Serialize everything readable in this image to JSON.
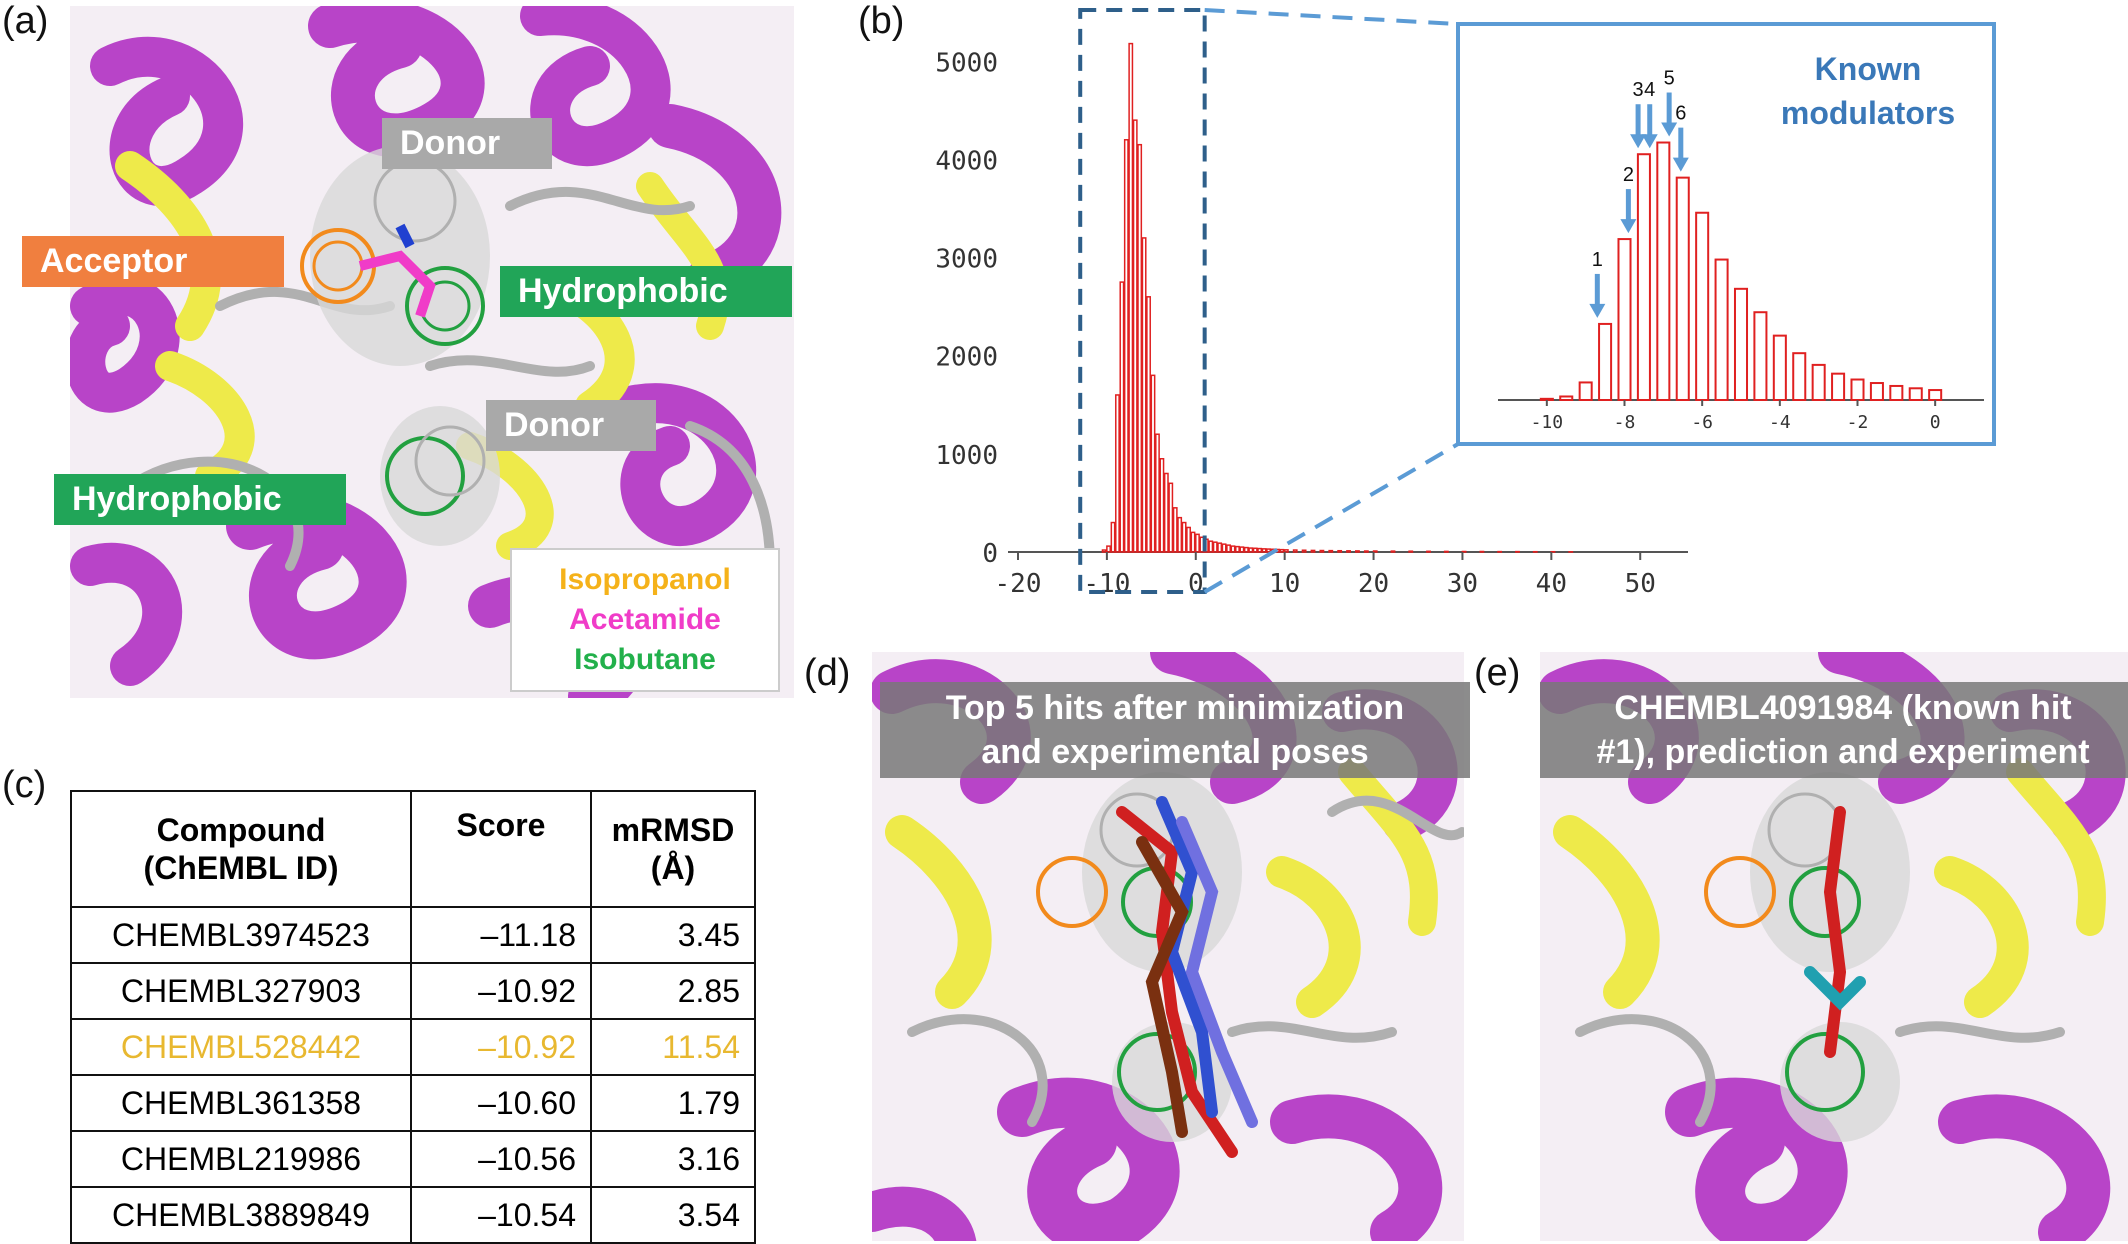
{
  "panels": {
    "a": {
      "letter": "(a)",
      "labels": {
        "acceptor": "Acceptor",
        "hydrophobic_1": "Hydrophobic",
        "hydrophobic_2": "Hydrophobic",
        "donor_1": "Donor",
        "donor_2": "Donor"
      },
      "legend": [
        {
          "text": "Isopropanol",
          "color": "#f5b21a"
        },
        {
          "text": "Acetamide",
          "color": "#f03cc8"
        },
        {
          "text": "Isobutane",
          "color": "#22b04b"
        }
      ]
    },
    "b": {
      "letter": "(b)",
      "inset_title_1": "Known",
      "inset_title_2": "modulators",
      "arrow_labels": [
        "1",
        "2 3 4",
        "5 6"
      ]
    },
    "c": {
      "letter": "(c)",
      "headers": [
        "Compound\n(ChEMBL ID)",
        "Score",
        "mRMSD\n(Å)"
      ],
      "header_lines": [
        [
          "Compound",
          "(ChEMBL ID)"
        ],
        [
          "Score"
        ],
        [
          "mRMSD",
          "(Å)"
        ]
      ],
      "rows": [
        {
          "id": "CHEMBL3974523",
          "score": "–11.18",
          "mrmsd": "3.45",
          "highlight": false
        },
        {
          "id": "CHEMBL327903",
          "score": "–10.92",
          "mrmsd": "2.85",
          "highlight": false
        },
        {
          "id": "CHEMBL528442",
          "score": "–10.92",
          "mrmsd": "11.54",
          "highlight": true
        },
        {
          "id": "CHEMBL361358",
          "score": "–10.60",
          "mrmsd": "1.79",
          "highlight": false
        },
        {
          "id": "CHEMBL219986",
          "score": "–10.56",
          "mrmsd": "3.16",
          "highlight": false
        },
        {
          "id": "CHEMBL3889849",
          "score": "–10.54",
          "mrmsd": "3.54",
          "highlight": false
        }
      ]
    },
    "d": {
      "letter": "(d)",
      "caption_1": "Top 5 hits after minimization",
      "caption_2": "and experimental poses"
    },
    "e": {
      "letter": "(e)",
      "caption_1": "CHEMBL4091984 (known hit",
      "caption_2": "#1), prediction and experiment"
    }
  },
  "chart_data": [
    {
      "type": "bar",
      "name": "main histogram",
      "x_ticks": [
        -20,
        -10,
        0,
        10,
        20,
        30,
        40,
        50
      ],
      "y_ticks": [
        0,
        1000,
        2000,
        3000,
        4000,
        5000
      ],
      "xlim": [
        -20,
        52
      ],
      "ylim": [
        0,
        5400
      ],
      "bin_width": 0.5,
      "bins_x": [
        -10.5,
        -10,
        -9.5,
        -9,
        -8.5,
        -8,
        -7.5,
        -7,
        -6.5,
        -6,
        -5.5,
        -5,
        -4.5,
        -4,
        -3.5,
        -3,
        -2.5,
        -2,
        -1.5,
        -1,
        -0.5,
        0,
        0.5,
        1,
        1.5,
        2,
        2.5,
        3,
        3.5,
        4,
        4.5,
        5,
        5.5,
        6,
        6.5,
        7,
        7.5,
        8,
        8.5,
        9,
        9.5,
        10,
        11,
        12,
        13,
        14,
        15,
        16,
        17,
        18,
        19,
        20,
        22,
        24,
        26,
        28,
        30,
        32,
        34,
        36,
        38,
        40,
        42
      ],
      "bins_y": [
        20,
        60,
        300,
        1600,
        2750,
        4200,
        5180,
        4400,
        4150,
        3200,
        2600,
        1800,
        1200,
        950,
        800,
        700,
        450,
        350,
        300,
        250,
        200,
        180,
        150,
        130,
        110,
        100,
        90,
        80,
        70,
        60,
        55,
        50,
        45,
        40,
        38,
        35,
        32,
        30,
        28,
        26,
        24,
        22,
        20,
        18,
        16,
        15,
        14,
        13,
        12,
        11,
        10,
        10,
        9,
        8,
        7,
        6,
        5,
        5,
        4,
        4,
        3,
        3,
        2
      ],
      "highlight_box_x": [
        -13,
        1
      ]
    },
    {
      "type": "bar",
      "name": "inset histogram",
      "x_ticks": [
        -10,
        -8,
        -6,
        -4,
        -2,
        0
      ],
      "xlim": [
        -11,
        1
      ],
      "ylim": [
        0,
        5400
      ],
      "bins_x": [
        -10,
        -9.5,
        -9,
        -8.5,
        -8,
        -7.5,
        -7,
        -6.5,
        -6,
        -5.5,
        -5,
        -4.5,
        -4,
        -3.5,
        -3,
        -2.5,
        -2,
        -1.5,
        -1,
        -0.5,
        0
      ],
      "bins_y": [
        20,
        60,
        300,
        1300,
        2750,
        4200,
        4400,
        3800,
        3200,
        2400,
        1900,
        1500,
        1100,
        800,
        600,
        450,
        350,
        290,
        240,
        200,
        170
      ],
      "arrows": [
        {
          "label": "1",
          "x": -8.7
        },
        {
          "label": "2",
          "x": -7.9
        },
        {
          "label": "3",
          "x": -7.65
        },
        {
          "label": "4",
          "x": -7.35
        },
        {
          "label": "5",
          "x": -6.85
        },
        {
          "label": "6",
          "x": -6.55
        }
      ]
    }
  ]
}
